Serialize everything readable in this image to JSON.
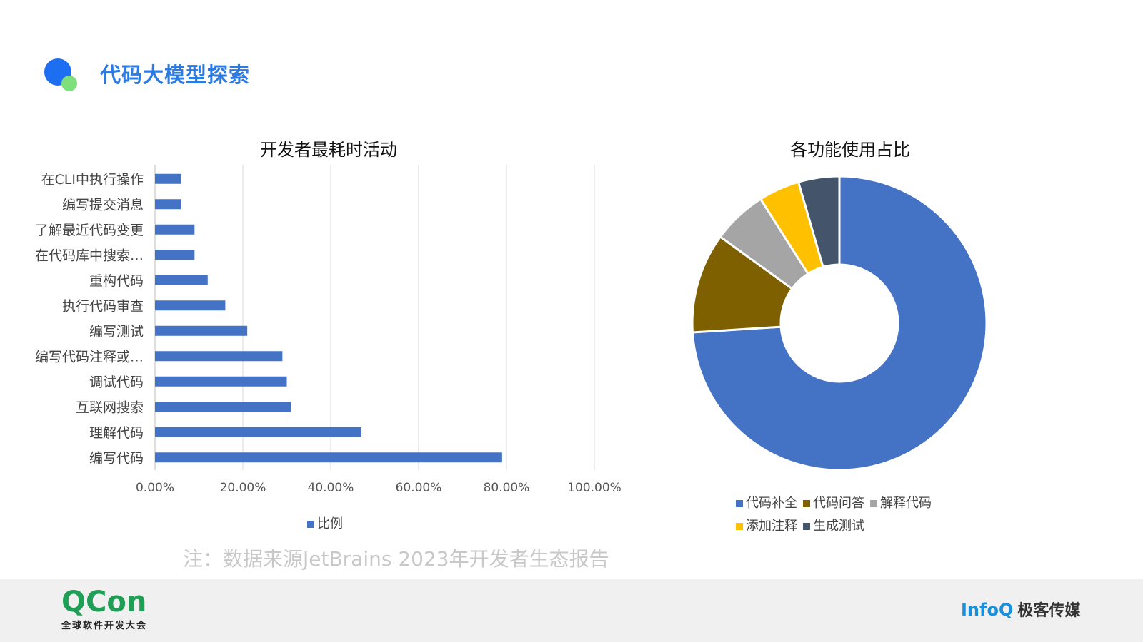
{
  "header": {
    "title": "代码大模型探索"
  },
  "chart_data": [
    {
      "type": "bar",
      "orientation": "horizontal",
      "title": "开发者最耗时活动",
      "categories": [
        "在CLI中执行操作",
        "编写提交消息",
        "了解最近代码变更",
        "在代码库中搜索…",
        "重构代码",
        "执行代码审查",
        "编写测试",
        "编写代码注释或…",
        "调试代码",
        "互联网搜索",
        "理解代码",
        "编写代码"
      ],
      "series": [
        {
          "name": "比例",
          "values": [
            0.06,
            0.06,
            0.09,
            0.09,
            0.12,
            0.16,
            0.21,
            0.29,
            0.3,
            0.31,
            0.47,
            0.79
          ]
        }
      ],
      "xlim": [
        0,
        1
      ],
      "xticks": [
        "0.00%",
        "20.00%",
        "40.00%",
        "60.00%",
        "80.00%",
        "100.00%"
      ],
      "grid": true,
      "legend_position": "bottom",
      "colors": {
        "bar": "#4472c4",
        "grid": "#d9d9d9"
      }
    },
    {
      "type": "pie",
      "variant": "donut",
      "title": "各功能使用占比",
      "categories": [
        "代码补全",
        "代码问答",
        "解释代码",
        "添加注释",
        "生成测试"
      ],
      "values": [
        0.74,
        0.11,
        0.06,
        0.045,
        0.045
      ],
      "colors": [
        "#4472c4",
        "#7f6000",
        "#a5a5a5",
        "#ffc000",
        "#44546a"
      ],
      "legend_position": "bottom"
    }
  ],
  "note": "注：数据来源JetBrains 2023年开发者生态报告",
  "footer": {
    "qcon_logo": "QCon",
    "qcon_subtitle": "全球软件开发大会",
    "infoq_logo": "InfoQ",
    "geek_logo": "极客传媒"
  }
}
